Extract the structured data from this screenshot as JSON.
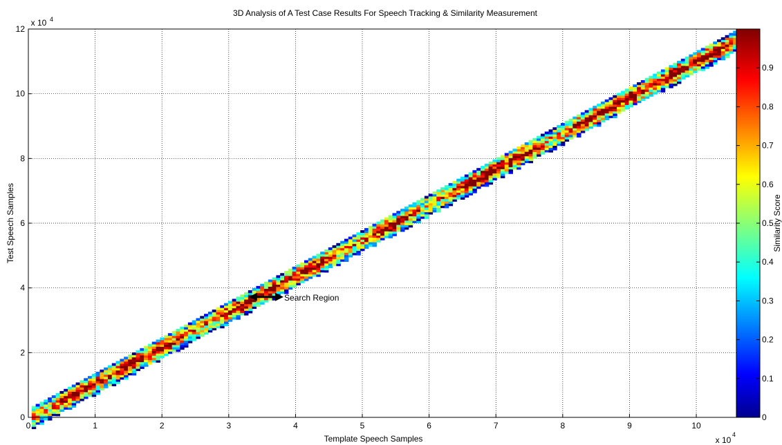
{
  "chart_data": {
    "type": "heatmap",
    "title": "3D Analysis of A Test Case Results For Speech Tracking & Similarity Measurement",
    "xlabel": "Template Speech Samples",
    "ylabel": "Test Speech Samples",
    "x_exponent_label": "x 10",
    "x_exponent_power": "4",
    "y_exponent_label": "x 10",
    "y_exponent_power": "4",
    "xlim": [
      0,
      10.6
    ],
    "ylim": [
      0,
      12
    ],
    "x_ticks": [
      "0",
      "1",
      "2",
      "3",
      "4",
      "5",
      "6",
      "7",
      "8",
      "9",
      "10"
    ],
    "y_ticks": [
      "0",
      "2",
      "4",
      "6",
      "8",
      "10",
      "12"
    ],
    "grid": true,
    "band": {
      "description_x_units": "x 10^4",
      "start": [
        0.05,
        0.0
      ],
      "end": [
        10.6,
        11.65
      ],
      "half_width_y": 0.35
    },
    "annotation": {
      "text": "Search Region",
      "arrow_from_x": 3.3,
      "arrow_to_x": 3.82,
      "at_y": 3.72
    },
    "colorbar": {
      "label": "Similarity Score",
      "range": [
        0,
        1
      ],
      "ticks": [
        "0",
        "0.1",
        "0.2",
        "0.3",
        "0.4",
        "0.5",
        "0.6",
        "0.7",
        "0.8",
        "0.9"
      ],
      "colormap": "jet"
    },
    "high_similarity_centers": [
      0.7,
      1.5,
      1.9,
      3.2,
      3.6,
      4.2,
      5.4,
      6.6,
      6.9,
      7.3,
      8.4,
      9.0,
      9.6,
      10.2
    ]
  }
}
